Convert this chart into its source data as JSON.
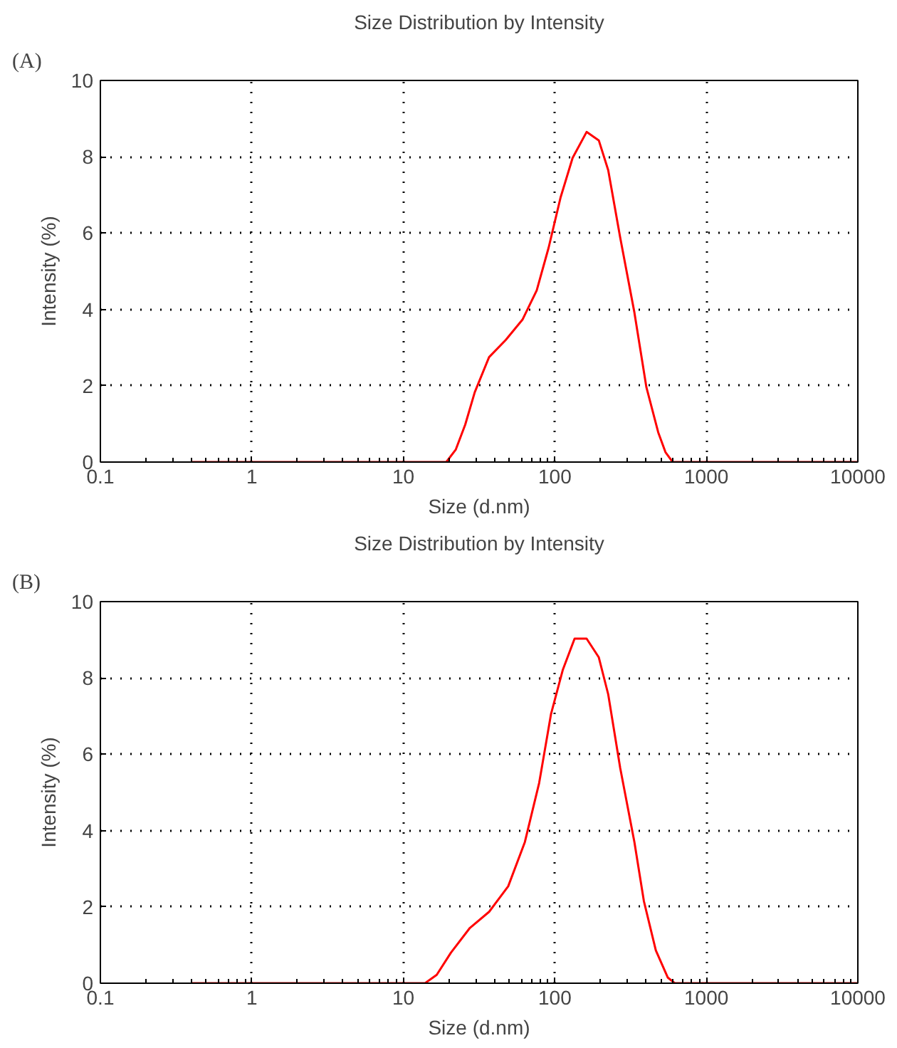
{
  "chart_data": [
    {
      "type": "line",
      "title": "Size Distribution by Intensity",
      "xlabel": "Size (d.nm)",
      "ylabel": "Intensity (%)",
      "annotations": [
        "(A)"
      ],
      "log": "x",
      "grid": true,
      "xlim": [
        0.1,
        10000
      ],
      "ylim": [
        0,
        10
      ],
      "xticks": [
        0.1,
        1,
        10,
        100,
        1000,
        10000
      ],
      "yticks": [
        0,
        2,
        4,
        6,
        8,
        10
      ],
      "series": [
        {
          "color": "#ff0000",
          "x": [
            0.4,
            19.2,
            22.2,
            25.6,
            29.6,
            36.8,
            47.4,
            61.1,
            75.9,
            91,
            109,
            131,
            162,
            195,
            225,
            270,
            335,
            402,
            481,
            537,
            599,
            10000
          ],
          "values": [
            0,
            0,
            0.33,
            0.98,
            1.83,
            2.75,
            3.2,
            3.73,
            4.5,
            5.62,
            6.93,
            7.97,
            8.65,
            8.43,
            7.65,
            5.88,
            3.92,
            1.96,
            0.78,
            0.26,
            0,
            0
          ]
        }
      ]
    },
    {
      "type": "line",
      "title": "Size Distribution by Intensity",
      "xlabel": "Size (d.nm)",
      "ylabel": "Intensity (%)",
      "annotations": [
        "(B)"
      ],
      "log": "x",
      "grid": true,
      "xlim": [
        0.1,
        10000
      ],
      "ylim": [
        0,
        10
      ],
      "xticks": [
        0.1,
        1,
        10,
        100,
        1000,
        10000
      ],
      "yticks": [
        0,
        2,
        4,
        6,
        8,
        10
      ],
      "series": [
        {
          "color": "#ff0000",
          "x": [
            0.4,
            13.9,
            16.6,
            20.6,
            27.5,
            36.8,
            49.2,
            63.4,
            78.8,
            94.4,
            113,
            135,
            162,
            195,
            225,
            270,
            335,
            387,
            464,
            556,
            619,
            10000
          ],
          "values": [
            0,
            0,
            0.22,
            0.8,
            1.45,
            1.87,
            2.54,
            3.7,
            5.25,
            7.06,
            8.22,
            9.03,
            9.03,
            8.54,
            7.57,
            5.64,
            3.7,
            2.15,
            0.86,
            0.15,
            0,
            0
          ]
        }
      ]
    }
  ]
}
